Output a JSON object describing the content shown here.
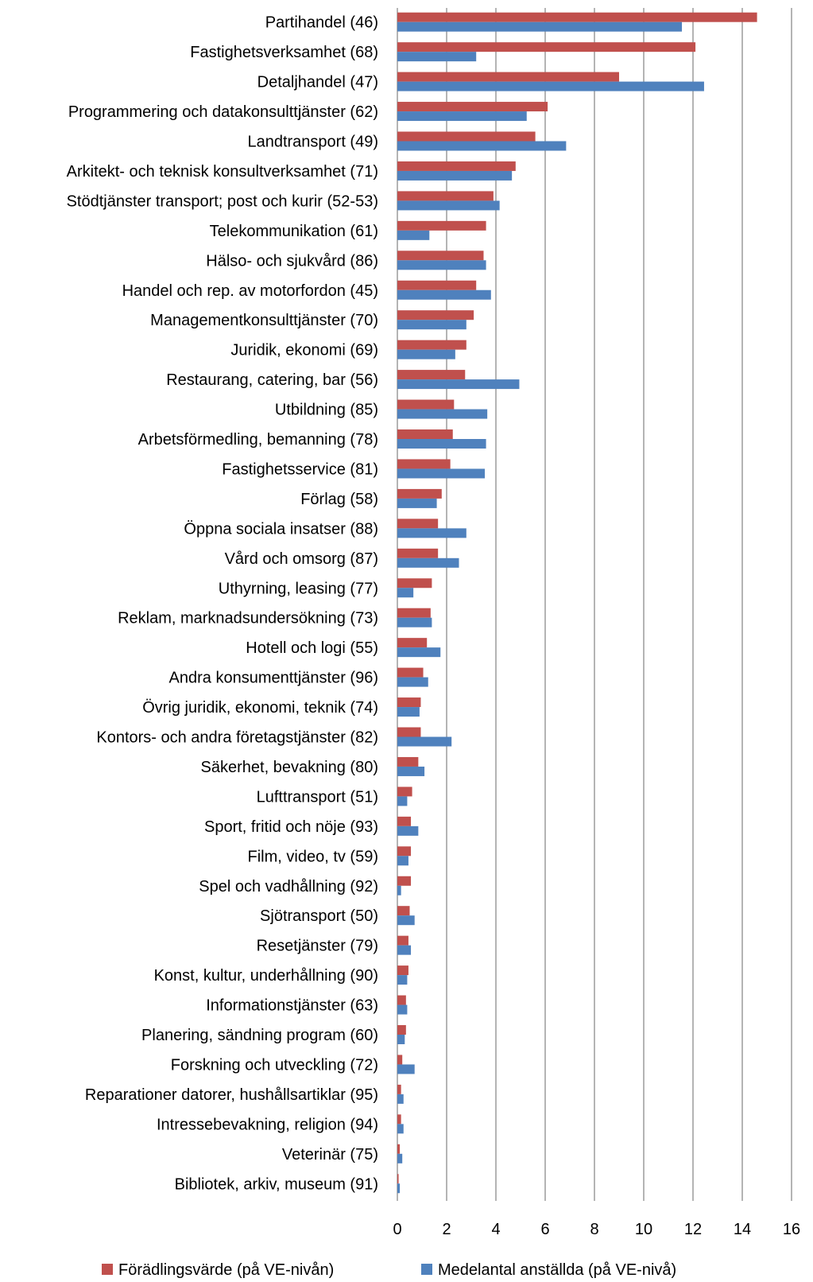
{
  "chart_data": {
    "type": "bar",
    "orientation": "horizontal",
    "categories": [
      "Partihandel (46)",
      "Fastighetsverksamhet (68)",
      "Detaljhandel (47)",
      "Programmering och datakonsulttjänster (62)",
      "Landtransport (49)",
      "Arkitekt- och teknisk konsultverksamhet (71)",
      "Stödtjänster transport; post och kurir (52-53)",
      "Telekommunikation (61)",
      "Hälso- och sjukvård (86)",
      "Handel och rep. av motorfordon (45)",
      "Managementkonsulttjänster (70)",
      "Juridik, ekonomi (69)",
      "Restaurang, catering, bar (56)",
      "Utbildning (85)",
      "Arbetsförmedling, bemanning (78)",
      "Fastighetsservice (81)",
      "Förlag (58)",
      "Öppna sociala insatser (88)",
      "Vård och omsorg (87)",
      "Uthyrning, leasing (77)",
      "Reklam, marknadsundersökning (73)",
      "Hotell och logi (55)",
      "Andra konsumenttjänster (96)",
      "Övrig juridik, ekonomi, teknik (74)",
      "Kontors- och andra företagstjänster (82)",
      "Säkerhet, bevakning (80)",
      "Lufttransport (51)",
      "Sport, fritid och nöje (93)",
      "Film, video, tv (59)",
      "Spel och vadhållning (92)",
      "Sjötransport (50)",
      "Resetjänster (79)",
      "Konst, kultur, underhållning (90)",
      "Informationstjänster (63)",
      "Planering, sändning program (60)",
      "Forskning och utveckling (72)",
      "Reparationer datorer, hushållsartiklar (95)",
      "Intressebevakning, religion (94)",
      "Veterinär (75)",
      "Bibliotek, arkiv, museum (91)"
    ],
    "series": [
      {
        "name": "Förädlingsvärde (på VE-nivån)",
        "color": "#c0504d",
        "values": [
          14.6,
          12.1,
          9.0,
          6.1,
          5.6,
          4.8,
          3.9,
          3.6,
          3.5,
          3.2,
          3.1,
          2.8,
          2.75,
          2.3,
          2.25,
          2.15,
          1.8,
          1.65,
          1.65,
          1.4,
          1.35,
          1.2,
          1.05,
          0.95,
          0.95,
          0.85,
          0.6,
          0.55,
          0.55,
          0.55,
          0.5,
          0.45,
          0.45,
          0.35,
          0.35,
          0.2,
          0.15,
          0.15,
          0.1,
          0.05
        ]
      },
      {
        "name": "Medelantal anställda (på VE-nivå)",
        "color": "#4f81bd",
        "values": [
          11.55,
          3.2,
          12.45,
          5.25,
          6.85,
          4.65,
          4.15,
          1.3,
          3.6,
          3.8,
          2.8,
          2.35,
          4.95,
          3.65,
          3.6,
          3.55,
          1.6,
          2.8,
          2.5,
          0.65,
          1.4,
          1.75,
          1.25,
          0.9,
          2.2,
          1.1,
          0.4,
          0.85,
          0.45,
          0.15,
          0.7,
          0.55,
          0.4,
          0.4,
          0.3,
          0.7,
          0.25,
          0.25,
          0.2,
          0.1
        ]
      }
    ],
    "xlim": [
      0,
      16
    ],
    "xticks": [
      0,
      2,
      4,
      6,
      8,
      10,
      12,
      14,
      16
    ],
    "grid": true,
    "legend_position": "bottom"
  }
}
